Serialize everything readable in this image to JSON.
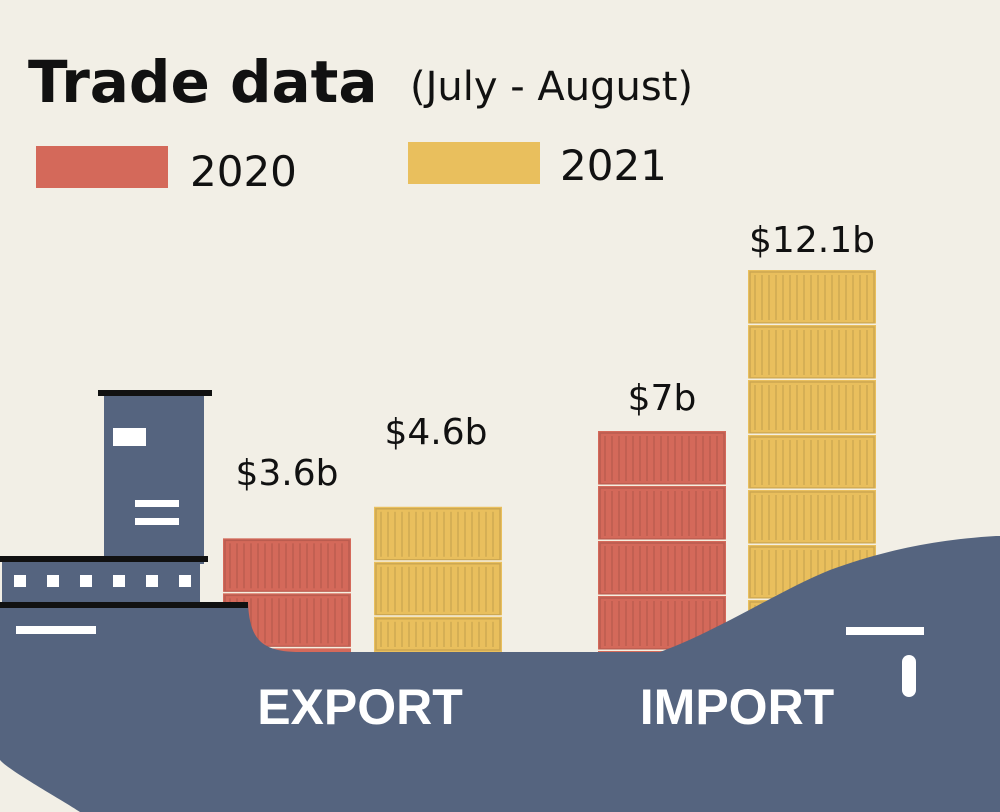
{
  "chart_data": {
    "type": "bar",
    "title": "Trade data",
    "subtitle": "(July - August)",
    "categories": [
      "EXPORT",
      "IMPORT"
    ],
    "series": [
      {
        "name": "2020",
        "values": [
          3.6,
          7
        ],
        "labels": [
          "$3.6b",
          "$7b"
        ]
      },
      {
        "name": "2021",
        "values": [
          4.6,
          12.1
        ],
        "labels": [
          "$4.6b",
          "$12.1b"
        ]
      }
    ],
    "unit": "b",
    "legend_position": "top-left",
    "grid": false,
    "colors": {
      "2020": "#d4695a",
      "2021": "#e9bf5d",
      "ship": "#55647f",
      "background": "#f2efe6"
    }
  }
}
